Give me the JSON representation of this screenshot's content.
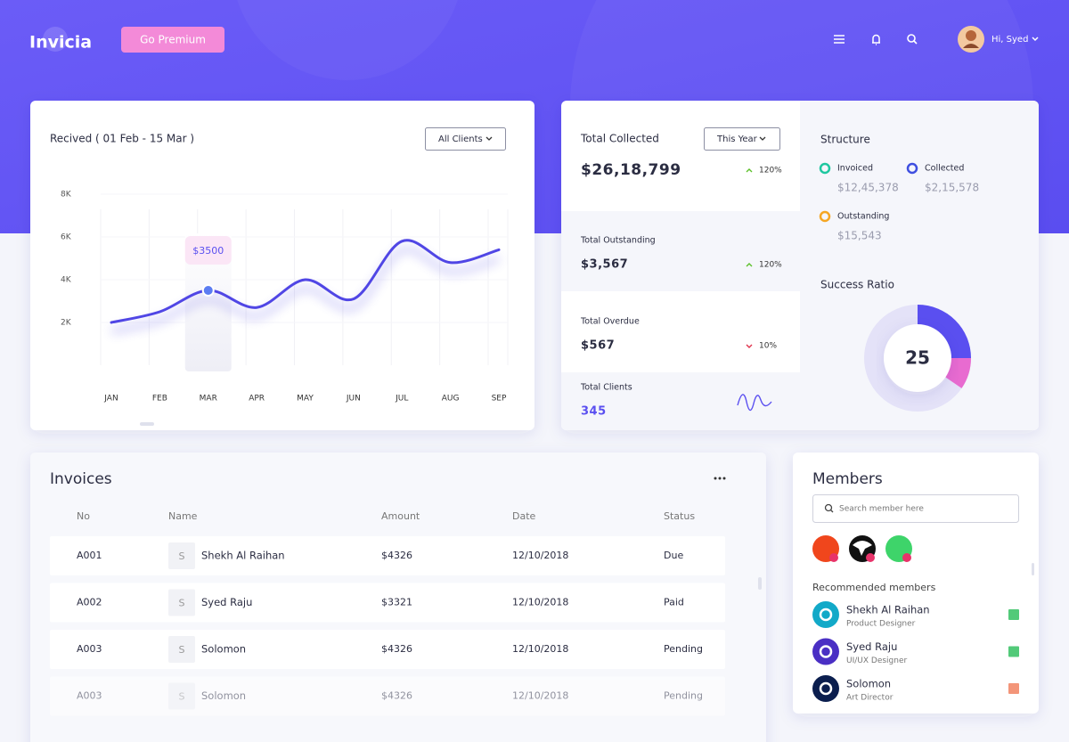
{
  "header": {
    "logo": "Invicia",
    "premium_button": "Go Premium",
    "greeting": "Hi, Syed"
  },
  "chart_data": {
    "type": "line",
    "title": "Recived ( 01 Feb - 15 Mar )",
    "filter": "All Clients",
    "categories": [
      "JAN",
      "FEB",
      "MAR",
      "APR",
      "MAY",
      "JUN",
      "JUL",
      "AUG",
      "SEP"
    ],
    "series": [
      {
        "color": "#5046e5",
        "values": [
          2000,
          2500,
          3500,
          2700,
          4000,
          3100,
          5800,
          4800,
          5400
        ],
        "value_labels": [
          null,
          null,
          "$3500",
          null,
          null,
          null,
          null,
          null,
          null
        ]
      }
    ],
    "ylim": [
      0,
      8000
    ],
    "yticks": [
      {
        "value": 2000,
        "label": "2K"
      },
      {
        "value": 4000,
        "label": "4K"
      },
      {
        "value": 6000,
        "label": "6K"
      },
      {
        "value": 8000,
        "label": "8K"
      }
    ],
    "grid": true
  },
  "totals": {
    "filter": "This Year",
    "items": [
      {
        "label": "Total Collected",
        "value": "$26,18,799",
        "change": "120%",
        "trend": "up"
      },
      {
        "label": "Total Outstanding",
        "value": "$3,567",
        "change": "120%",
        "trend": "up"
      },
      {
        "label": "Total Overdue",
        "value": "$567",
        "change": "10%",
        "trend": "down"
      },
      {
        "label": "Total Clients",
        "value": "345"
      }
    ]
  },
  "structure": {
    "title": "Structure",
    "items": [
      {
        "label": "Invoiced",
        "value": "$12,45,378",
        "color": "#1fc7a0"
      },
      {
        "label": "Collected",
        "value": "$2,15,578",
        "color": "#3f4fe0"
      },
      {
        "label": "Outstanding",
        "value": "$15,543",
        "color": "#f5a623"
      }
    ]
  },
  "success_ratio": {
    "title": "Success Ratio",
    "value": 25,
    "color": "#5a4ff0"
  },
  "invoices": {
    "title": "Invoices",
    "columns": [
      "No",
      "Name",
      "Amount",
      "Date",
      "Status"
    ],
    "rows": [
      [
        "A001",
        "S",
        "Shekh Al Raihan",
        "$4326",
        "12/10/2018",
        "Due"
      ],
      [
        "A002",
        "S",
        "Syed Raju",
        "$3321",
        "12/10/2018",
        "Paid"
      ],
      [
        "A003",
        "S",
        "Solomon",
        "$4326",
        "12/10/2018",
        "Pending"
      ],
      [
        "A003",
        "S",
        "Solomon",
        "$4326",
        "12/10/2018",
        "Pending"
      ]
    ]
  },
  "members": {
    "title": "Members",
    "search_placeholder": "Search member here",
    "recommended_title": "Recommended members",
    "recommended": [
      {
        "name": "Shekh Al Raihan",
        "role": "Product Designer"
      },
      {
        "name": "Syed Raju",
        "role": "UI/UX Designer"
      },
      {
        "name": "Solomon",
        "role": "Art Director"
      }
    ]
  }
}
